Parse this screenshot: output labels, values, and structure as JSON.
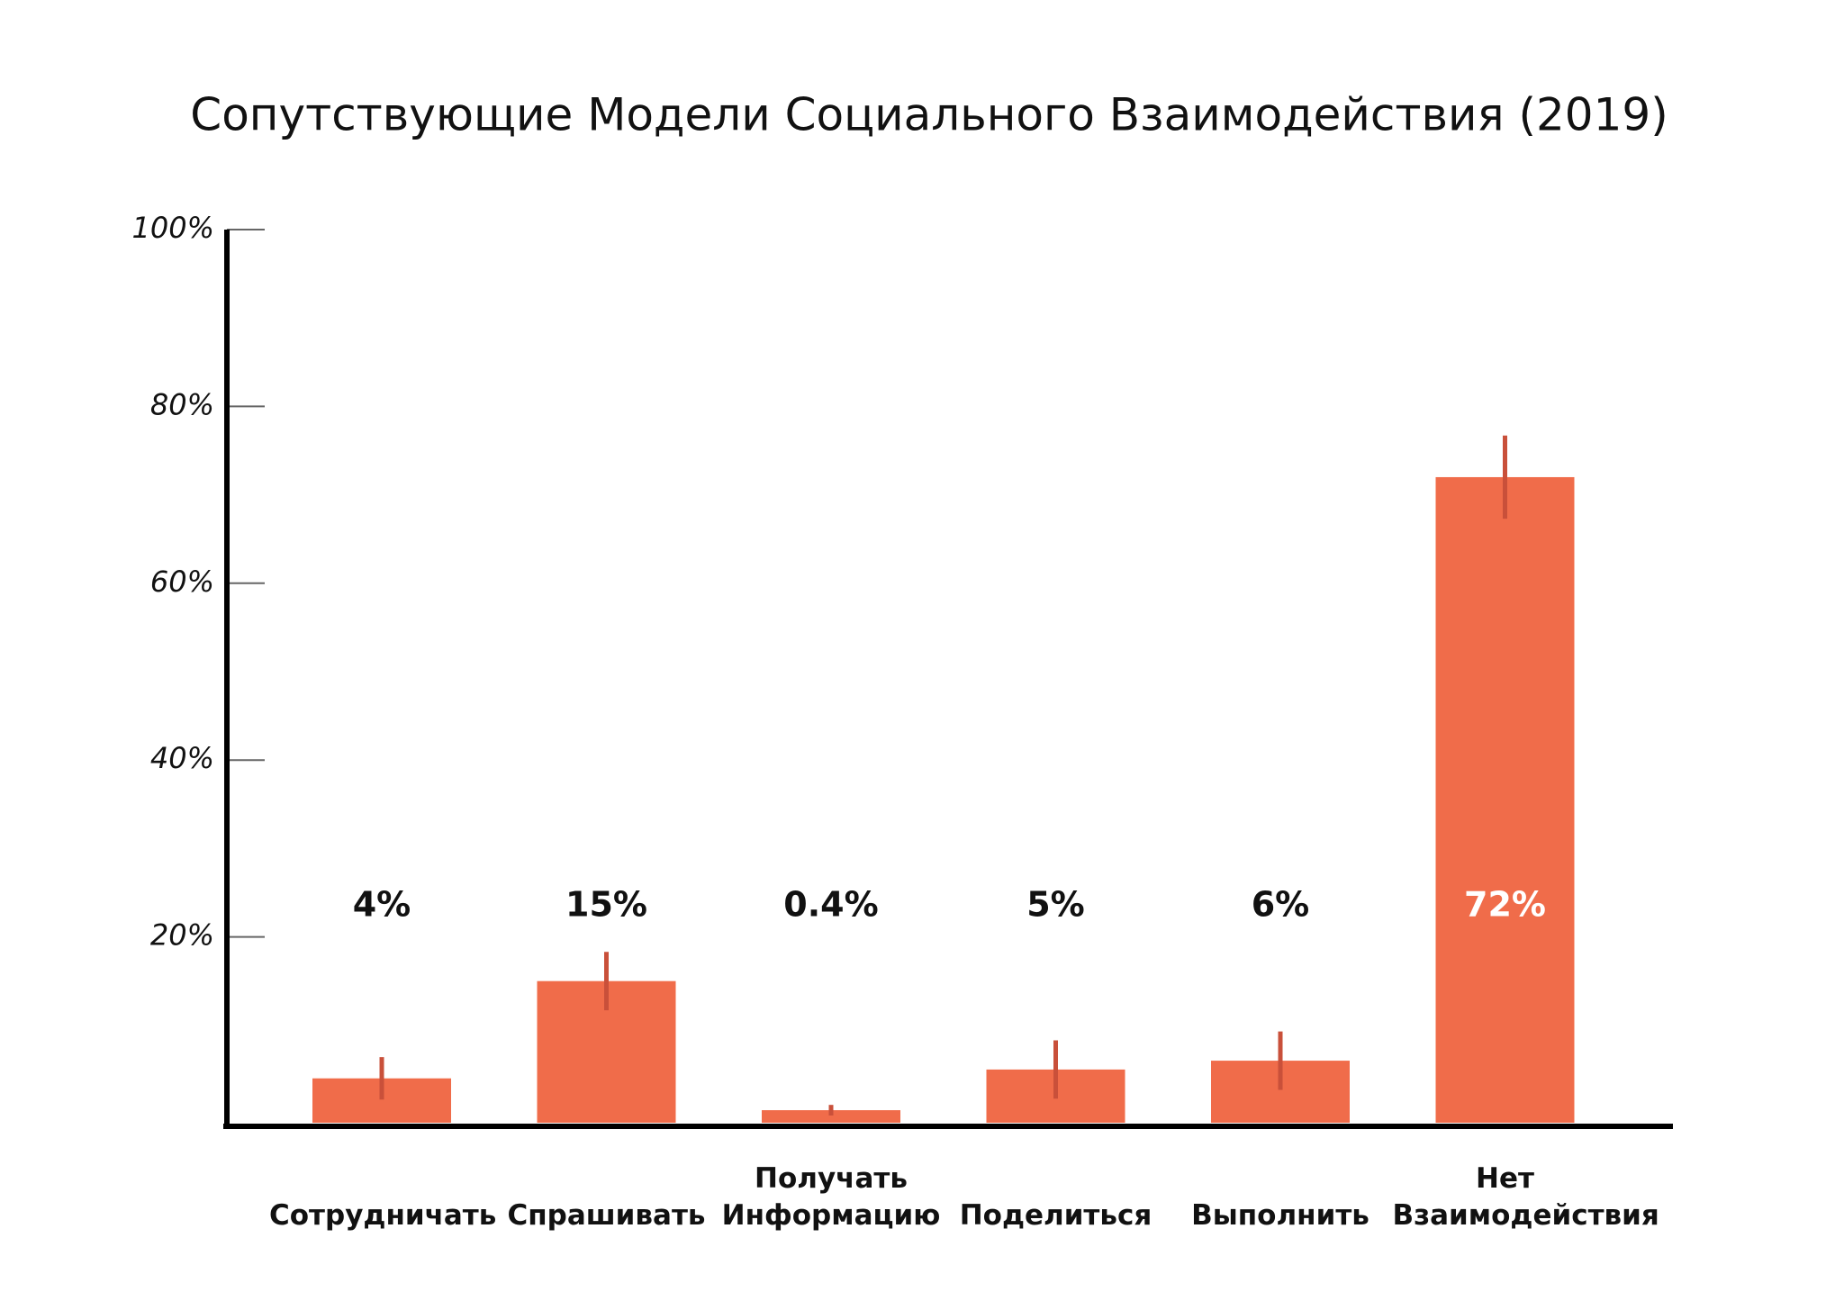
{
  "chart_data": {
    "type": "bar",
    "title": "Сопутствующие Модели Социального Взаимодействия (2019)",
    "categories": [
      "Сотрудничать",
      "Спрашивать",
      "Получать\nИнформацию",
      "Поделиться",
      "Выполнить",
      "Нет\nВзаимодействия"
    ],
    "values": [
      4,
      15,
      0.4,
      5,
      6,
      72
    ],
    "value_labels": [
      "4%",
      "15%",
      "0.4%",
      "5%",
      "6%",
      "72%"
    ],
    "errors": [
      2.4,
      3.3,
      0.6,
      3.3,
      3.3,
      4.7
    ],
    "color": "#f06c4a",
    "error_color": "#c9503a",
    "ylim": [
      0,
      100
    ],
    "yticks": [
      {
        "value": 20,
        "label": "20%"
      },
      {
        "value": 40,
        "label": "40%"
      },
      {
        "value": 60,
        "label": "60%"
      },
      {
        "value": 80,
        "label": "80%"
      },
      {
        "value": 100,
        "label": "100%"
      }
    ]
  }
}
